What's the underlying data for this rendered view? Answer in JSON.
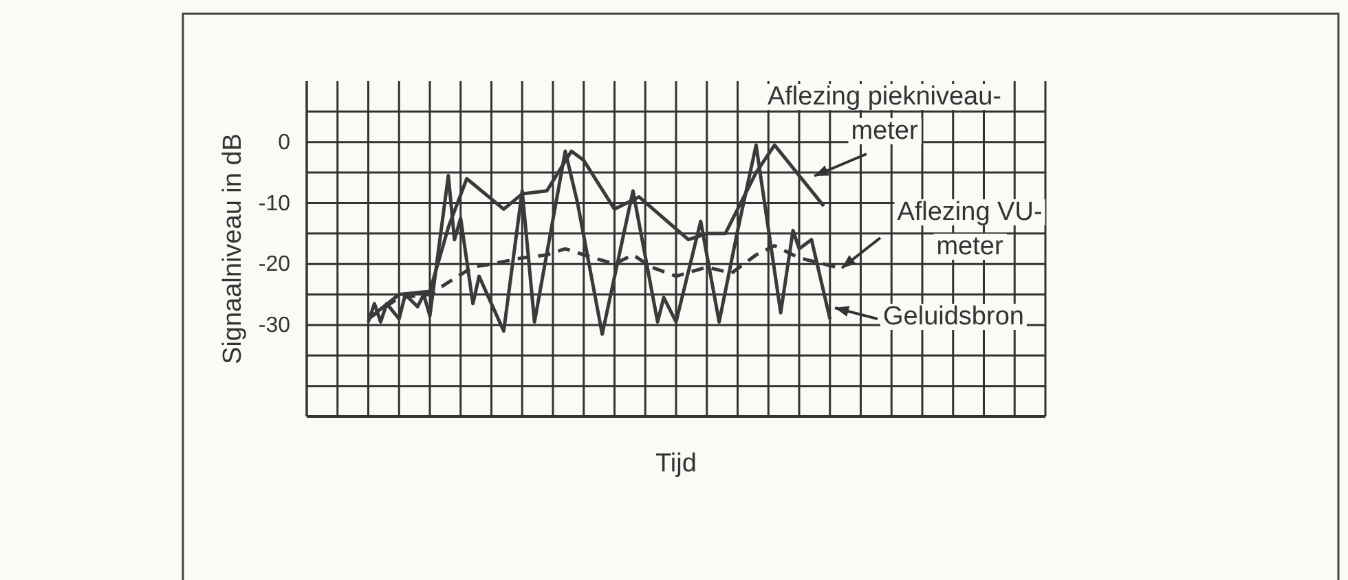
{
  "chart_data": {
    "type": "line",
    "xlabel": "Tijd",
    "ylabel": "Signaalniveau in dB",
    "categories": [
      null,
      null,
      null,
      null,
      null,
      null,
      null,
      null,
      null,
      null,
      null,
      null,
      null,
      null,
      null,
      null,
      null,
      null,
      null,
      null,
      null,
      null,
      null,
      null,
      null,
      null,
      null,
      null,
      null,
      null,
      null,
      null,
      null,
      null,
      null,
      null,
      null,
      null,
      null,
      null,
      null,
      null,
      null,
      null,
      null,
      null,
      null,
      null,
      null,
      null,
      null,
      null,
      null,
      null,
      null,
      null,
      null,
      null,
      null,
      null,
      null,
      null,
      null,
      null,
      null,
      null,
      null,
      null,
      null,
      null,
      null,
      null,
      null,
      null,
      null,
      null,
      null,
      null,
      null,
      null,
      null,
      null,
      null,
      null,
      null,
      null,
      null,
      null,
      null,
      null,
      null,
      null,
      null,
      null,
      null,
      null,
      null,
      null,
      null,
      null,
      null,
      null,
      null,
      null,
      null,
      null,
      null,
      null,
      null,
      null,
      null,
      null,
      null,
      null,
      null,
      null,
      null,
      null,
      null,
      null,
      null
    ],
    "ylim": [
      -45,
      10
    ],
    "yticks": [
      {
        "value": -45,
        "label": null
      },
      {
        "value": -40,
        "label": null
      },
      {
        "value": -35,
        "label": null
      },
      -30,
      {
        "value": -25,
        "label": null
      },
      -20,
      {
        "value": -15,
        "label": null
      },
      -10,
      {
        "value": -5,
        "label": null
      },
      0,
      {
        "value": 5,
        "label": null
      }
    ],
    "grid": true,
    "marker": "none",
    "series": [
      {
        "color": "#3a3a3a",
        "line_style": "solid",
        "values": [
          null,
          null,
          null,
          null,
          null,
          null,
          null,
          null,
          null,
          null,
          -29,
          null,
          null,
          null,
          null,
          -25,
          null,
          null,
          null,
          null,
          -24.5,
          null,
          null,
          -14,
          null,
          null,
          -6,
          null,
          null,
          null,
          null,
          null,
          -11,
          null,
          null,
          -8.5,
          null,
          null,
          null,
          -8,
          null,
          null,
          null,
          -1.5,
          null,
          -3,
          null,
          null,
          null,
          null,
          -11,
          null,
          null,
          null,
          -9,
          null,
          null,
          null,
          null,
          null,
          null,
          null,
          -16,
          null,
          null,
          -15,
          null,
          null,
          -15,
          null,
          null,
          null,
          null,
          -5,
          null,
          null,
          -0.5,
          null,
          null,
          null,
          null,
          null,
          null,
          null,
          -10.5,
          null,
          null,
          null,
          null,
          null,
          null,
          null,
          null,
          null,
          null,
          null,
          null,
          null,
          null,
          null,
          null,
          null,
          null,
          null,
          null,
          null,
          null,
          null,
          null,
          null,
          null,
          null,
          null,
          null,
          null,
          null,
          null,
          null,
          null,
          null,
          null
        ]
      },
      {
        "color": "#3a3a3a",
        "line_style": "dashed",
        "values": [
          null,
          null,
          null,
          null,
          null,
          null,
          null,
          null,
          null,
          null,
          -29,
          null,
          null,
          null,
          null,
          -25.5,
          null,
          null,
          null,
          null,
          -25,
          null,
          null,
          -23,
          null,
          null,
          null,
          -20.5,
          null,
          null,
          -20,
          null,
          null,
          null,
          null,
          -19,
          null,
          null,
          null,
          -18.5,
          null,
          null,
          -17.5,
          null,
          null,
          -18.5,
          null,
          null,
          null,
          null,
          -20,
          null,
          null,
          -18.5,
          null,
          null,
          -20.5,
          null,
          null,
          null,
          -22,
          null,
          null,
          null,
          null,
          -20.5,
          null,
          null,
          null,
          -21.5,
          null,
          null,
          null,
          -18.5,
          null,
          null,
          -17,
          null,
          null,
          null,
          -19,
          null,
          null,
          null,
          null,
          null,
          -20.5,
          null,
          null,
          null,
          null,
          null,
          null,
          null,
          null,
          null,
          null,
          null,
          null,
          null,
          null,
          null,
          null,
          null,
          null,
          null,
          null,
          null,
          null,
          null,
          null,
          null,
          null,
          null,
          null,
          null,
          null,
          null,
          null,
          null,
          null
        ]
      },
      {
        "color": "#3a3a3a",
        "line_style": "solid",
        "values": [
          null,
          null,
          null,
          null,
          null,
          null,
          null,
          null,
          null,
          null,
          -29.5,
          -26.5,
          -29.5,
          -26.5,
          null,
          -29,
          -25,
          null,
          -27,
          -25,
          -28.5,
          null,
          null,
          -5.5,
          -16,
          -12.5,
          null,
          -26.5,
          -22,
          null,
          null,
          null,
          -31,
          null,
          null,
          -8,
          null,
          -29.5,
          null,
          null,
          null,
          null,
          -1.5,
          null,
          -10,
          null,
          null,
          null,
          -31.5,
          null,
          null,
          null,
          null,
          -8,
          null,
          null,
          null,
          -29.5,
          -25.5,
          null,
          -29.5,
          null,
          null,
          null,
          -13,
          null,
          null,
          -29.5,
          null,
          null,
          -14.5,
          null,
          null,
          -0.5,
          null,
          null,
          null,
          -28,
          null,
          -14.5,
          -17.5,
          null,
          -16,
          null,
          null,
          -29,
          null,
          null,
          null,
          null,
          null,
          null,
          null,
          null,
          null,
          null,
          null,
          null,
          null,
          null,
          null,
          null,
          null,
          null,
          null,
          null,
          null,
          null,
          null,
          null,
          null,
          null,
          null,
          null,
          null,
          null,
          null,
          null,
          null,
          null,
          null
        ]
      }
    ],
    "annotations": [
      "Aflezing piekniveau-\nmeter",
      "Aflezing VU-\nmeter",
      "Geluidsbron"
    ]
  }
}
